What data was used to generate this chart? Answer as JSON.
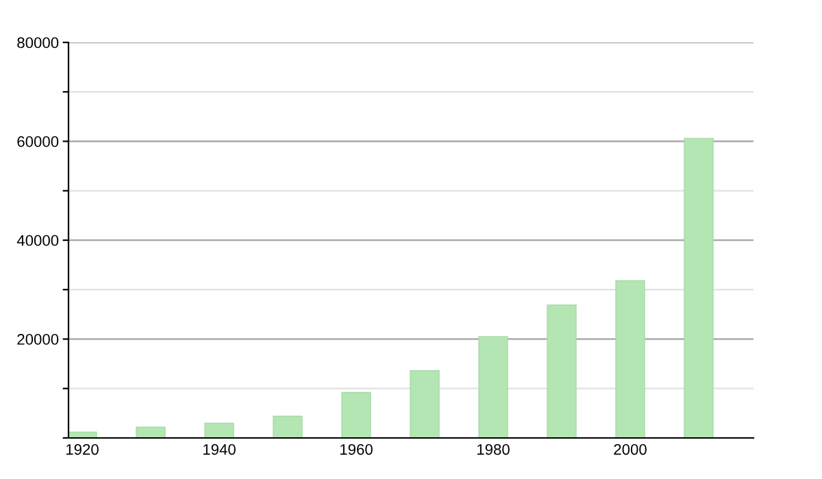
{
  "chart_data": {
    "type": "bar",
    "x": [
      1920,
      1930,
      1940,
      1950,
      1960,
      1970,
      1980,
      1990,
      2000,
      2010
    ],
    "values": [
      1200,
      2200,
      3000,
      4400,
      9200,
      13600,
      20500,
      26900,
      31800,
      60600
    ],
    "color": "#b3e6b3",
    "xlim": [
      1918,
      2018
    ],
    "xticks": [
      1920,
      1940,
      1960,
      1980,
      2000
    ],
    "ylim": [
      0,
      80000
    ],
    "yticks": [
      {
        "value": 0,
        "label": null
      },
      {
        "value": 10000,
        "label": null
      },
      20000,
      {
        "value": 30000,
        "label": null
      },
      40000,
      {
        "value": 50000,
        "label": null
      },
      60000,
      {
        "value": 70000,
        "label": null
      },
      80000
    ],
    "grid": "y",
    "legend": false
  }
}
